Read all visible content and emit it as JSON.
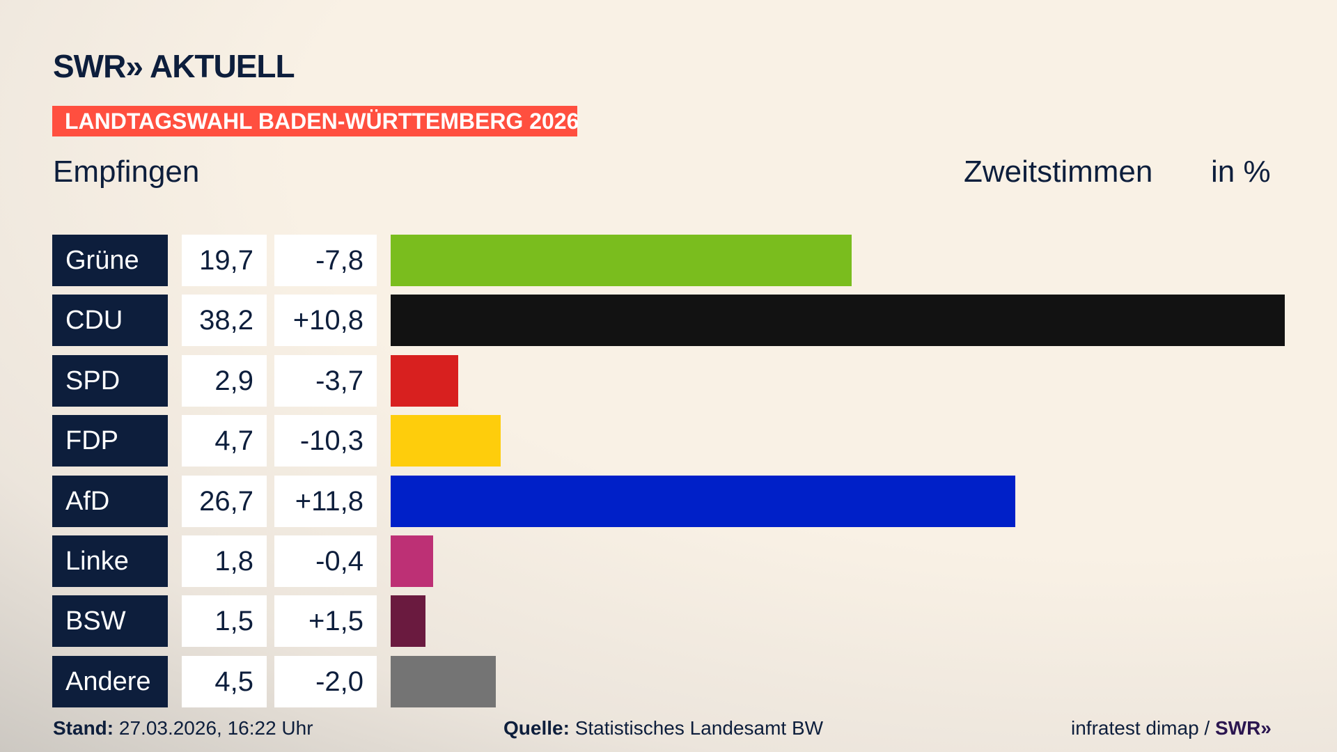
{
  "header": {
    "logo": "SWR» AKTUELL",
    "banner": "LANDTAGSWAHL BADEN-WÜRTTEMBERG 2026",
    "place": "Empfingen",
    "metric": "Zweitstimmen",
    "unit": "in %"
  },
  "chart_data": {
    "type": "bar",
    "orientation": "horizontal",
    "categories": [
      "Grüne",
      "CDU",
      "SPD",
      "FDP",
      "AfD",
      "Linke",
      "BSW",
      "Andere"
    ],
    "values": [
      19.7,
      38.2,
      2.9,
      4.7,
      26.7,
      1.8,
      1.5,
      4.5
    ],
    "value_labels": [
      "19,7",
      "38,2",
      "2,9",
      "4,7",
      "26,7",
      "1,8",
      "1,5",
      "4,5"
    ],
    "diff_labels": [
      "-7,8",
      "+10,8",
      "-3,7",
      "-10,3",
      "+11,8",
      "-0,4",
      "+1,5",
      "-2,0"
    ],
    "colors": [
      "#7abd1e",
      "#121212",
      "#d8201f",
      "#fecd0c",
      "#0020c8",
      "#bd3075",
      "#6a1a3f",
      "#747474"
    ],
    "xlim": [
      0,
      38.2
    ]
  },
  "footer": {
    "stand_label": "Stand:",
    "stand": "27.03.2026, 16:22 Uhr",
    "source_label": "Quelle:",
    "source": "Statistisches Landesamt BW",
    "credit": "infratest dimap / ",
    "credit_logo": "SWR»"
  }
}
